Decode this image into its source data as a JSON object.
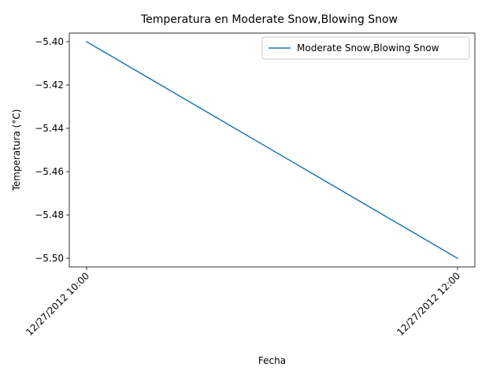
{
  "chart_data": {
    "type": "line",
    "title": "Temperatura en Moderate Snow,Blowing Snow",
    "xlabel": "Fecha",
    "ylabel": "Temperatura (°C)",
    "categories": [
      "12/27/2012 10:00",
      "12/27/2012 12:00"
    ],
    "ylim": [
      -5.504,
      -5.396
    ],
    "yticks": [
      -5.4,
      -5.42,
      -5.44,
      -5.46,
      -5.48,
      -5.5
    ],
    "ytick_labels": [
      "−5.40",
      "−5.42",
      "−5.44",
      "−5.46",
      "−5.48",
      "−5.50"
    ],
    "grid": false,
    "legend_position": "top-right",
    "series": [
      {
        "name": "Moderate Snow,Blowing Snow",
        "color": "#1f77b4",
        "values": [
          -5.4,
          -5.5
        ]
      }
    ]
  }
}
